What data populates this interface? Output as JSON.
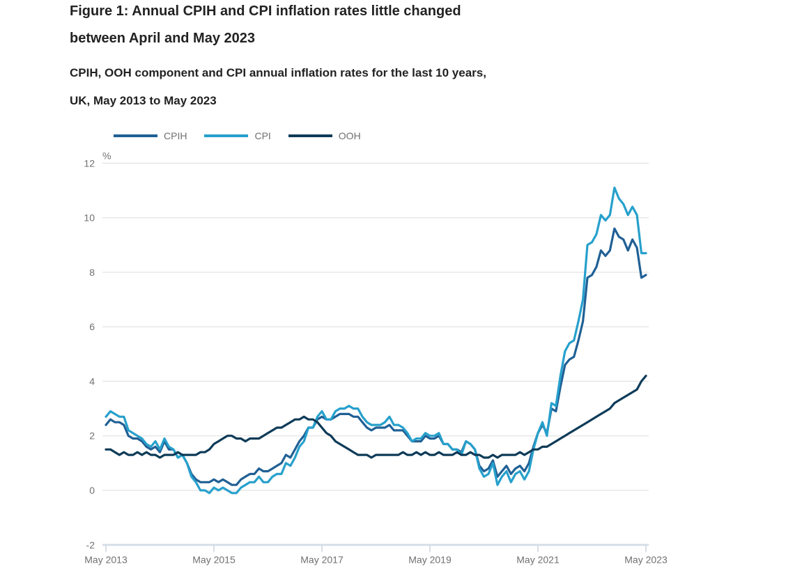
{
  "figure": {
    "title_line1": "Figure 1: Annual CPIH and CPI inflation rates little changed",
    "title_line2": "between April and May 2023",
    "subtitle_line1": "CPIH, OOH component and CPI annual inflation rates for the last 10 years,",
    "subtitle_line2": "UK, May 2013 to May 2023"
  },
  "legend": {
    "items": [
      {
        "label": "CPIH",
        "color": "#206095"
      },
      {
        "label": "CPI",
        "color": "#27A0CC"
      },
      {
        "label": "OOH",
        "color": "#0E3B58"
      }
    ]
  },
  "chart_data": {
    "type": "line",
    "title": "Figure 1: Annual CPIH and CPI inflation rates little changed between April and May 2023",
    "subtitle": "CPIH, OOH component and CPI annual inflation rates for the last 10 years, UK, May 2013 to May 2023",
    "unit_label": "%",
    "frequency": "monthly",
    "x_start": "May 2013",
    "x_end": "May 2023",
    "x_tick_labels": [
      "May 2013",
      "May 2015",
      "May 2017",
      "May 2019",
      "May 2021",
      "May 2023"
    ],
    "x_tick_months": [
      0,
      24,
      48,
      72,
      96,
      120
    ],
    "y_ticks": [
      -2,
      0,
      2,
      4,
      6,
      8,
      10,
      12
    ],
    "ylim": [
      -2,
      12
    ],
    "grid": true,
    "legend_position": "top",
    "colors": {
      "grid": "#E4E4E4",
      "axis": "#D6DEE8",
      "tick_text": "#707071"
    },
    "series": [
      {
        "name": "CPIH",
        "color": "#206095",
        "values": [
          2.4,
          2.6,
          2.5,
          2.5,
          2.4,
          2.0,
          1.9,
          1.9,
          1.8,
          1.6,
          1.5,
          1.6,
          1.4,
          1.8,
          1.5,
          1.5,
          1.2,
          1.3,
          1.0,
          0.6,
          0.4,
          0.3,
          0.3,
          0.3,
          0.4,
          0.3,
          0.4,
          0.3,
          0.2,
          0.2,
          0.4,
          0.5,
          0.6,
          0.6,
          0.8,
          0.7,
          0.7,
          0.8,
          0.9,
          1.0,
          1.3,
          1.2,
          1.5,
          1.8,
          2.0,
          2.3,
          2.3,
          2.6,
          2.7,
          2.6,
          2.6,
          2.7,
          2.8,
          2.8,
          2.8,
          2.7,
          2.7,
          2.5,
          2.3,
          2.2,
          2.3,
          2.3,
          2.3,
          2.4,
          2.2,
          2.2,
          2.2,
          2.0,
          1.8,
          1.8,
          1.8,
          2.0,
          1.9,
          1.9,
          2.0,
          1.7,
          1.7,
          1.5,
          1.5,
          1.4,
          1.8,
          1.7,
          1.5,
          0.9,
          0.7,
          0.8,
          1.1,
          0.5,
          0.7,
          0.9,
          0.6,
          0.8,
          0.9,
          0.7,
          1.0,
          1.6,
          2.1,
          2.4,
          2.1,
          3.0,
          2.9,
          3.8,
          4.6,
          4.8,
          4.9,
          5.5,
          6.2,
          7.8,
          7.9,
          8.2,
          8.8,
          8.6,
          8.8,
          9.6,
          9.3,
          9.2,
          8.8,
          9.2,
          8.9,
          7.8,
          7.9
        ]
      },
      {
        "name": "CPI",
        "color": "#27A0CC",
        "values": [
          2.7,
          2.9,
          2.8,
          2.7,
          2.7,
          2.2,
          2.1,
          2.0,
          1.9,
          1.7,
          1.6,
          1.8,
          1.5,
          1.9,
          1.6,
          1.5,
          1.2,
          1.3,
          1.0,
          0.5,
          0.3,
          0.0,
          0.0,
          -0.1,
          0.1,
          0.0,
          0.1,
          0.0,
          -0.1,
          -0.1,
          0.1,
          0.2,
          0.3,
          0.3,
          0.5,
          0.3,
          0.3,
          0.5,
          0.6,
          0.6,
          1.0,
          0.9,
          1.2,
          1.6,
          1.8,
          2.3,
          2.3,
          2.7,
          2.9,
          2.6,
          2.6,
          2.9,
          3.0,
          3.0,
          3.1,
          3.0,
          3.0,
          2.7,
          2.5,
          2.4,
          2.4,
          2.4,
          2.5,
          2.7,
          2.4,
          2.4,
          2.3,
          2.1,
          1.8,
          1.9,
          1.9,
          2.1,
          2.0,
          2.0,
          2.1,
          1.7,
          1.7,
          1.5,
          1.5,
          1.3,
          1.8,
          1.7,
          1.5,
          0.8,
          0.5,
          0.6,
          1.0,
          0.2,
          0.5,
          0.7,
          0.3,
          0.6,
          0.7,
          0.4,
          0.7,
          1.5,
          2.1,
          2.5,
          2.0,
          3.2,
          3.1,
          4.2,
          5.1,
          5.4,
          5.5,
          6.2,
          7.0,
          9.0,
          9.1,
          9.4,
          10.1,
          9.9,
          10.1,
          11.1,
          10.7,
          10.5,
          10.1,
          10.4,
          10.1,
          8.7,
          8.7
        ]
      },
      {
        "name": "OOH",
        "color": "#0E3B58",
        "values": [
          1.5,
          1.5,
          1.4,
          1.3,
          1.4,
          1.3,
          1.3,
          1.4,
          1.3,
          1.4,
          1.3,
          1.3,
          1.2,
          1.3,
          1.3,
          1.3,
          1.4,
          1.3,
          1.3,
          1.3,
          1.3,
          1.4,
          1.4,
          1.5,
          1.7,
          1.8,
          1.9,
          2.0,
          2.0,
          1.9,
          1.9,
          1.8,
          1.9,
          1.9,
          1.9,
          2.0,
          2.1,
          2.2,
          2.3,
          2.3,
          2.4,
          2.5,
          2.6,
          2.6,
          2.7,
          2.6,
          2.6,
          2.5,
          2.3,
          2.1,
          2.0,
          1.8,
          1.7,
          1.6,
          1.5,
          1.4,
          1.3,
          1.3,
          1.3,
          1.2,
          1.3,
          1.3,
          1.3,
          1.3,
          1.3,
          1.3,
          1.4,
          1.3,
          1.3,
          1.4,
          1.3,
          1.4,
          1.3,
          1.3,
          1.4,
          1.3,
          1.3,
          1.3,
          1.4,
          1.3,
          1.3,
          1.4,
          1.3,
          1.3,
          1.2,
          1.2,
          1.3,
          1.2,
          1.3,
          1.3,
          1.3,
          1.3,
          1.4,
          1.3,
          1.4,
          1.5,
          1.5,
          1.6,
          1.6,
          1.7,
          1.8,
          1.9,
          2.0,
          2.1,
          2.2,
          2.3,
          2.4,
          2.5,
          2.6,
          2.7,
          2.8,
          2.9,
          3.0,
          3.2,
          3.3,
          3.4,
          3.5,
          3.6,
          3.7,
          4.0,
          4.2
        ]
      }
    ]
  }
}
